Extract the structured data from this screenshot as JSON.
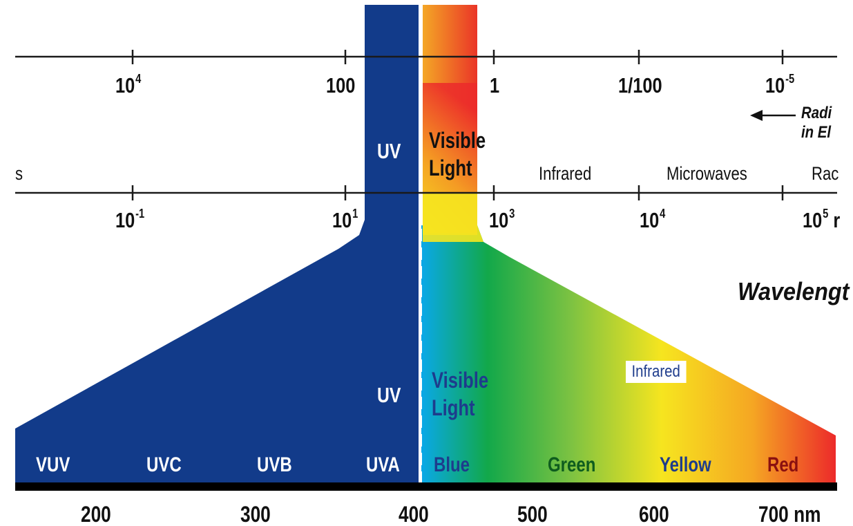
{
  "colors": {
    "uv_blue": "#123b8a",
    "axis_line": "#1a1a1a",
    "baseline": "#000000",
    "ir_label_text": "#1e3c8c",
    "spectrum": [
      "#0aa8e8",
      "#12a84a",
      "#7cc242",
      "#f6e51f",
      "#f5a623",
      "#ec2a2a"
    ]
  },
  "top_axis": {
    "ticks": [
      {
        "base": "10",
        "exp": "4"
      },
      {
        "base": "100",
        "exp": ""
      },
      {
        "base": "1",
        "exp": ""
      },
      {
        "base": "1/100",
        "exp": ""
      },
      {
        "base": "10",
        "exp": "-5"
      }
    ],
    "annotation": {
      "arrow": "left-arrow-icon",
      "line1": "Radi",
      "line2": "in El"
    }
  },
  "middle_axis": {
    "bands": [
      {
        "label": "s"
      },
      {
        "label": "Infrared"
      },
      {
        "label": "Microwaves"
      },
      {
        "label": "Rac"
      }
    ],
    "ticks": [
      {
        "base": "10",
        "exp": "-1"
      },
      {
        "base": "10",
        "exp": "1"
      },
      {
        "base": "10",
        "exp": "3"
      },
      {
        "base": "10",
        "exp": "4"
      },
      {
        "base": "10",
        "exp": "5"
      }
    ],
    "partial_unit": "r",
    "wavelength_label": "Wavelengt"
  },
  "upper_column": {
    "uv_label": "UV",
    "visible_line1": "Visible",
    "visible_line2": "Light"
  },
  "lower_region": {
    "uv_label": "UV",
    "visible_line1": "Visible",
    "visible_line2": "Light",
    "infrared_label": "Infrared",
    "uv_subbands": [
      "VUV",
      "UVC",
      "UVB",
      "UVA"
    ],
    "visible_subbands": [
      {
        "label": "Blue",
        "color": "#1e3c8c"
      },
      {
        "label": "Green",
        "color": "#0e5c1e"
      },
      {
        "label": "Yellow",
        "color": "#1e3c8c"
      },
      {
        "label": "Red",
        "color": "#8a1010"
      }
    ]
  },
  "bottom_axis": {
    "labels": [
      "200",
      "300",
      "400",
      "500",
      "600",
      "700 nm"
    ]
  }
}
